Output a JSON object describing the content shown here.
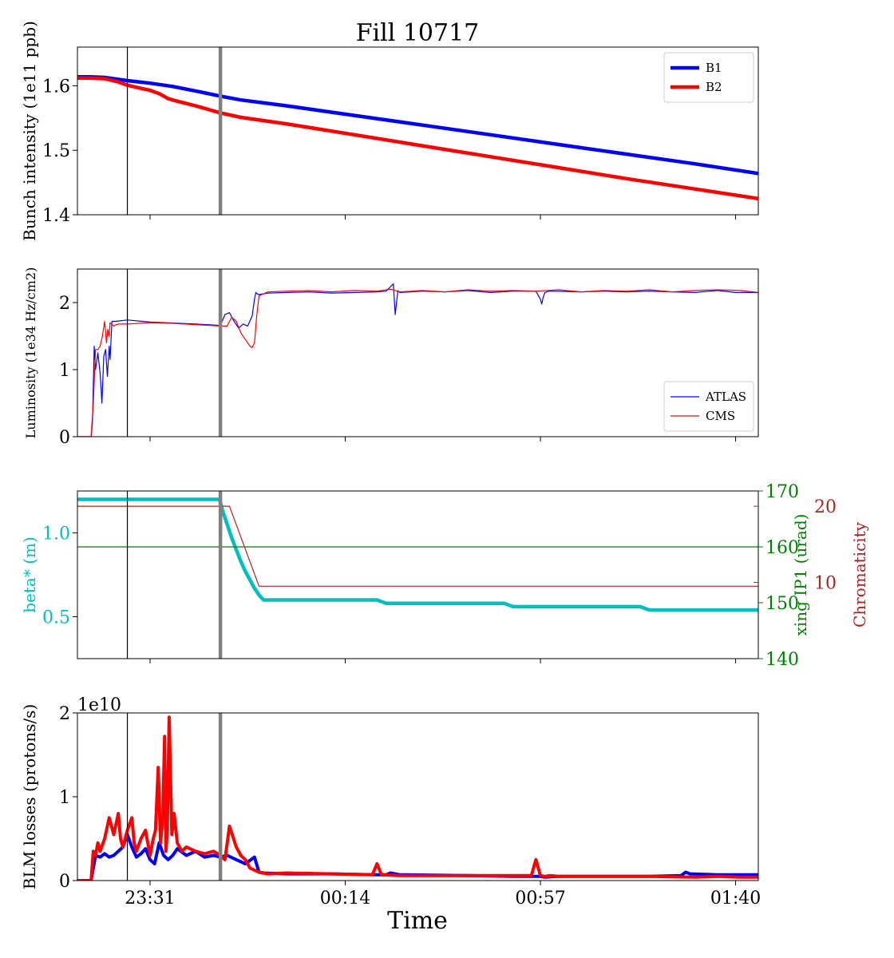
{
  "title": "Fill 10717",
  "xlabel": "Time",
  "colors": {
    "B1": "#0000ff",
    "B2": "#ff0000",
    "ATLAS": "#0000ff",
    "CMS": "#ff0000",
    "beta": "#00bfbf",
    "xing": "#008000",
    "chroma": "#b22222",
    "marker_thin": "#000000",
    "marker_thick": "#808080"
  },
  "x_axis": {
    "unit": "minutes",
    "range": [
      -16,
      134
    ],
    "ticks": [
      {
        "value": 0,
        "label": "23:31"
      },
      {
        "value": 43,
        "label": "00:14"
      },
      {
        "value": 86,
        "label": "00:57"
      },
      {
        "value": 129,
        "label": "01:40"
      }
    ],
    "markers": [
      {
        "value": -5,
        "style": "thin"
      },
      {
        "value": 15.5,
        "style": "thick"
      }
    ]
  },
  "chart_data": [
    {
      "type": "line",
      "ylabel": "Bunch intensity (1e11 ppb)",
      "ylim": [
        1.4,
        1.66
      ],
      "yticks": [
        {
          "value": 1.4,
          "label": "1.4"
        },
        {
          "value": 1.5,
          "label": "1.5"
        },
        {
          "value": 1.6,
          "label": "1.6"
        }
      ],
      "legend": "top-right",
      "series": [
        {
          "name": "B1",
          "color_key": "B1",
          "width": 4.5,
          "x": [
            -16,
            -13,
            -10,
            -5,
            0,
            5,
            10,
            15.5,
            20,
            30,
            45,
            60,
            75,
            90,
            105,
            120,
            134
          ],
          "y": [
            1.614,
            1.614,
            1.613,
            1.608,
            1.604,
            1.599,
            1.592,
            1.584,
            1.578,
            1.569,
            1.554,
            1.539,
            1.524,
            1.509,
            1.494,
            1.479,
            1.464
          ]
        },
        {
          "name": "B2",
          "color_key": "B2",
          "width": 4.5,
          "x": [
            -16,
            -13,
            -10,
            -7,
            -5,
            -2,
            0,
            2,
            4,
            6,
            10,
            15.5,
            20,
            30,
            45,
            60,
            75,
            90,
            105,
            120,
            134
          ],
          "y": [
            1.612,
            1.612,
            1.611,
            1.606,
            1.601,
            1.596,
            1.593,
            1.588,
            1.58,
            1.576,
            1.569,
            1.558,
            1.551,
            1.541,
            1.524,
            1.507,
            1.49,
            1.473,
            1.456,
            1.44,
            1.425
          ]
        }
      ]
    },
    {
      "type": "line",
      "ylabel": "Luminosity (1e34 Hz/cm2)",
      "ylim": [
        0,
        2.5
      ],
      "yticks": [
        {
          "value": 0,
          "label": "0"
        },
        {
          "value": 1,
          "label": "1"
        },
        {
          "value": 2,
          "label": "2"
        }
      ],
      "legend": "bottom-right",
      "series": [
        {
          "name": "ATLAS",
          "color_key": "ATLAS",
          "width": 1.2,
          "x": [
            -16,
            -13,
            -12.7,
            -12.3,
            -12,
            -11.5,
            -11,
            -10.6,
            -10.2,
            -9.8,
            -9.4,
            -9,
            -8.8,
            -8.4,
            -8,
            -7.5,
            -5,
            0,
            10,
            15.5,
            16.5,
            17.5,
            18.5,
            19.5,
            20.5,
            21.5,
            22.5,
            23,
            23.3,
            23.6,
            24,
            26,
            30,
            35,
            40,
            45,
            50,
            52,
            53.6,
            54,
            54.6,
            55,
            60,
            65,
            70,
            75,
            80,
            85,
            86,
            86.3,
            86.6,
            87,
            87.4,
            88,
            95,
            100,
            105,
            110,
            115,
            120,
            125,
            129,
            134
          ],
          "y": [
            0,
            0,
            0.2,
            1.35,
            1.0,
            1.25,
            0.95,
            0.5,
            1.2,
            1.3,
            0.9,
            1.35,
            1.15,
            1.72,
            1.72,
            1.72,
            1.74,
            1.71,
            1.68,
            1.66,
            1.82,
            1.85,
            1.72,
            1.62,
            1.68,
            1.65,
            1.8,
            2.05,
            2.15,
            2.13,
            2.12,
            2.14,
            2.15,
            2.16,
            2.14,
            2.15,
            2.16,
            2.17,
            2.28,
            1.82,
            2.18,
            2.15,
            2.17,
            2.16,
            2.18,
            2.15,
            2.17,
            2.17,
            2.05,
            1.98,
            2.08,
            2.15,
            2.16,
            2.17,
            2.16,
            2.17,
            2.16,
            2.17,
            2.16,
            2.15,
            2.18,
            2.15,
            2.15
          ]
        },
        {
          "name": "CMS",
          "color_key": "CMS",
          "width": 1.2,
          "x": [
            -16,
            -13,
            -12.5,
            -12,
            -11.5,
            -11,
            -10.5,
            -10,
            -9.6,
            -9.3,
            -9,
            -8.8,
            -8.5,
            -8,
            -7.5,
            -7,
            -5,
            0,
            5,
            10,
            15.5,
            17,
            17.5,
            18,
            19,
            20,
            21,
            22,
            22.5,
            23,
            23.5,
            24,
            26,
            30,
            35,
            40,
            45,
            50,
            53,
            55,
            60,
            65,
            70,
            75,
            80,
            85,
            90,
            95,
            100,
            105,
            110,
            115,
            120,
            125,
            130,
            134
          ],
          "y": [
            0,
            0,
            0.5,
            1.3,
            1.3,
            1.35,
            1.5,
            1.72,
            1.4,
            1.6,
            1.5,
            1.7,
            1.68,
            1.65,
            1.67,
            1.68,
            1.68,
            1.7,
            1.69,
            1.67,
            1.65,
            1.65,
            1.72,
            1.78,
            1.72,
            1.55,
            1.45,
            1.35,
            1.33,
            1.4,
            1.8,
            2.1,
            2.16,
            2.17,
            2.18,
            2.16,
            2.18,
            2.17,
            2.2,
            2.16,
            2.18,
            2.16,
            2.19,
            2.17,
            2.18,
            2.17,
            2.19,
            2.16,
            2.18,
            2.17,
            2.19,
            2.16,
            2.18,
            2.19,
            2.18,
            2.15
          ]
        }
      ]
    },
    {
      "type": "line",
      "ylabel": "beta* (m)",
      "ylabel_color_key": "beta",
      "ylim": [
        0.25,
        1.25
      ],
      "yticks": [
        {
          "value": 0.5,
          "label": "0.5"
        },
        {
          "value": 1.0,
          "label": "1.0"
        }
      ],
      "right_axes": [
        {
          "ylabel": "xing IP1 (urad)",
          "color_key": "xing",
          "ylim": [
            140,
            170
          ],
          "yticks": [
            {
              "value": 140,
              "label": "140"
            },
            {
              "value": 150,
              "label": "150"
            },
            {
              "value": 160,
              "label": "160"
            },
            {
              "value": 170,
              "label": "170"
            }
          ]
        },
        {
          "ylabel": "Chromaticity",
          "color_key": "chroma",
          "ylim": [
            0,
            22
          ],
          "yticks": [
            {
              "value": 10,
              "label": "10"
            },
            {
              "value": 20,
              "label": "20"
            }
          ]
        }
      ],
      "series": [
        {
          "name": "beta*",
          "axis": "left",
          "color_key": "beta",
          "width": 4.5,
          "x": [
            -16,
            15.3,
            16,
            17,
            18,
            19,
            20,
            21,
            22,
            23,
            24,
            25,
            26,
            27,
            28,
            29.5,
            40,
            50,
            51,
            52,
            60,
            70,
            78,
            79,
            80,
            90,
            100,
            108,
            109,
            110,
            120,
            130,
            134
          ],
          "y": [
            1.2,
            1.2,
            1.13,
            1.05,
            0.97,
            0.9,
            0.83,
            0.77,
            0.72,
            0.67,
            0.63,
            0.6,
            0.6,
            0.6,
            0.6,
            0.6,
            0.6,
            0.6,
            0.59,
            0.58,
            0.58,
            0.58,
            0.58,
            0.57,
            0.56,
            0.56,
            0.56,
            0.56,
            0.55,
            0.54,
            0.54,
            0.54,
            0.54
          ]
        },
        {
          "name": "xing IP1",
          "axis": "right0",
          "color_key": "xing",
          "width": 1.2,
          "x": [
            -16,
            134
          ],
          "y": [
            160,
            160
          ]
        },
        {
          "name": "Chromaticity",
          "axis": "right1",
          "color_key": "chroma",
          "width": 1.2,
          "x": [
            -16,
            15.3,
            15.6,
            15.8,
            16.6,
            17.5,
            24,
            26,
            134
          ],
          "y": [
            20,
            20,
            8,
            20,
            20,
            20,
            9.5,
            9.5,
            9.5
          ]
        }
      ]
    },
    {
      "type": "line",
      "ylabel": "BLM losses (protons/s)",
      "offset_label": "1e10",
      "ylim": [
        0,
        2
      ],
      "yticks": [
        {
          "value": 0,
          "label": "0"
        },
        {
          "value": 1,
          "label": "1"
        },
        {
          "value": 2,
          "label": "2"
        }
      ],
      "series": [
        {
          "name": "B1",
          "color_key": "B1",
          "width": 4,
          "x": [
            -16,
            -13,
            -12,
            -11,
            -10,
            -9,
            -8,
            -7,
            -6,
            -5,
            -4,
            -3,
            -2,
            -1,
            0,
            1,
            2,
            3,
            4,
            5,
            6,
            8,
            10,
            12,
            14,
            15.5,
            17,
            19,
            21,
            23,
            24,
            25,
            30,
            40,
            50,
            52,
            53,
            55,
            70,
            80,
            86,
            87,
            90,
            100,
            110,
            117,
            118,
            119,
            125,
            134
          ],
          "y": [
            0,
            0,
            0.3,
            0.28,
            0.32,
            0.28,
            0.3,
            0.35,
            0.4,
            0.55,
            0.4,
            0.28,
            0.32,
            0.38,
            0.25,
            0.2,
            0.45,
            0.3,
            0.25,
            0.3,
            0.38,
            0.3,
            0.35,
            0.28,
            0.3,
            0.28,
            0.3,
            0.25,
            0.2,
            0.28,
            0.1,
            0.09,
            0.08,
            0.08,
            0.07,
            0.07,
            0.09,
            0.07,
            0.06,
            0.05,
            0.05,
            0.04,
            0.05,
            0.05,
            0.05,
            0.06,
            0.1,
            0.08,
            0.07,
            0.07
          ]
        },
        {
          "name": "B2",
          "color_key": "B2",
          "width": 4,
          "x": [
            -16,
            -13,
            -12.5,
            -12,
            -11.5,
            -11,
            -10,
            -9,
            -8,
            -7,
            -6.5,
            -6,
            -5,
            -4,
            -3.5,
            -3,
            -2,
            -1,
            0,
            0.7,
            1.2,
            1.8,
            2.3,
            2.8,
            3.2,
            3.5,
            3.8,
            4.2,
            4.8,
            5.3,
            6,
            7,
            8,
            10,
            12,
            14,
            15.5,
            16.5,
            17.5,
            19,
            20,
            21,
            22,
            24,
            26,
            30,
            40,
            49,
            50,
            51,
            55,
            70,
            84,
            85,
            86,
            87,
            88,
            90,
            100,
            110,
            120,
            125,
            130,
            134
          ],
          "y": [
            0,
            0,
            0.35,
            0.3,
            0.45,
            0.35,
            0.5,
            0.75,
            0.55,
            0.8,
            0.5,
            0.4,
            0.6,
            0.75,
            0.45,
            0.35,
            0.5,
            0.6,
            0.3,
            0.5,
            0.6,
            1.35,
            0.45,
            0.75,
            1.72,
            0.35,
            0.6,
            1.95,
            0.55,
            0.8,
            0.45,
            0.35,
            0.4,
            0.35,
            0.32,
            0.35,
            0.3,
            0.25,
            0.65,
            0.4,
            0.3,
            0.25,
            0.15,
            0.1,
            0.08,
            0.09,
            0.08,
            0.07,
            0.2,
            0.07,
            0.06,
            0.06,
            0.06,
            0.25,
            0.06,
            0.05,
            0.06,
            0.05,
            0.05,
            0.05,
            0.04,
            0.05,
            0.04,
            0.04
          ]
        }
      ]
    }
  ]
}
